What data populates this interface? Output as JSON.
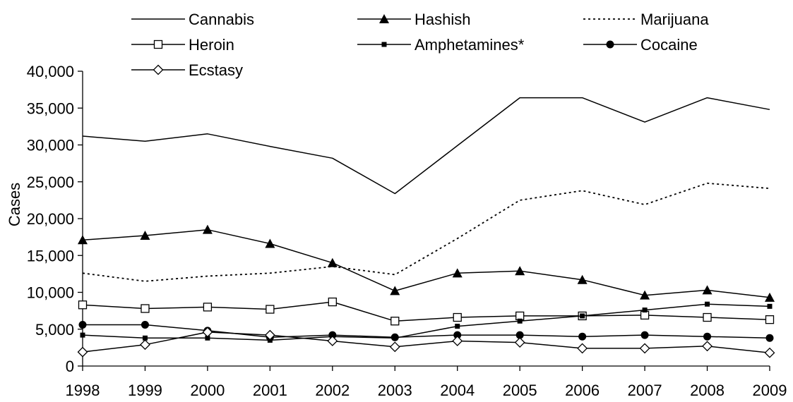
{
  "chart_data": {
    "type": "line",
    "title": "",
    "xlabel": "",
    "ylabel": "Cases",
    "x": [
      1998,
      1999,
      2000,
      2001,
      2002,
      2003,
      2004,
      2005,
      2006,
      2007,
      2008,
      2009
    ],
    "x_tick_labels": [
      "1998",
      "1999",
      "2000",
      "2001",
      "2002",
      "2003",
      "2004",
      "2005",
      "2006",
      "2007",
      "2008",
      "2009"
    ],
    "ylim": [
      0,
      40000
    ],
    "y_ticks": [
      0,
      5000,
      10000,
      15000,
      20000,
      25000,
      30000,
      35000,
      40000
    ],
    "y_tick_labels": [
      "0",
      "5,000",
      "10,000",
      "15,000",
      "20,000",
      "25,000",
      "30,000",
      "35,000",
      "40,000"
    ],
    "grid": false,
    "legend_position": "top",
    "series": [
      {
        "name": "Cannabis",
        "line": "solid",
        "marker": "none",
        "values": [
          31200,
          30500,
          31500,
          29800,
          28200,
          23400,
          29900,
          36400,
          36400,
          33100,
          36400,
          34800
        ]
      },
      {
        "name": "Hashish",
        "line": "solid",
        "marker": "filled-triangle",
        "values": [
          17100,
          17700,
          18500,
          16600,
          14000,
          10200,
          12600,
          12900,
          11700,
          9600,
          10300,
          9300
        ]
      },
      {
        "name": "Marijuana",
        "line": "dotted",
        "marker": "none",
        "values": [
          12600,
          11500,
          12200,
          12600,
          13500,
          12400,
          17300,
          22500,
          23800,
          21900,
          24800,
          24100
        ]
      },
      {
        "name": "Heroin",
        "line": "solid",
        "marker": "open-square",
        "values": [
          8300,
          7800,
          8000,
          7700,
          8700,
          6100,
          6600,
          6800,
          6800,
          6900,
          6600,
          6300
        ]
      },
      {
        "name": "Amphetamines*",
        "line": "solid",
        "marker": "small-filled-square",
        "values": [
          4200,
          3800,
          3800,
          3500,
          4000,
          3800,
          5400,
          6100,
          6800,
          7600,
          8400,
          8100
        ]
      },
      {
        "name": "Cocaine",
        "line": "solid",
        "marker": "filled-circle",
        "values": [
          5600,
          5600,
          4800,
          3900,
          4200,
          3900,
          4200,
          4200,
          4000,
          4200,
          4000,
          3800
        ]
      },
      {
        "name": "Ecstasy",
        "line": "solid",
        "marker": "open-diamond",
        "values": [
          1900,
          2900,
          4600,
          4200,
          3400,
          2600,
          3400,
          3200,
          2400,
          2400,
          2700,
          1800
        ]
      }
    ]
  }
}
